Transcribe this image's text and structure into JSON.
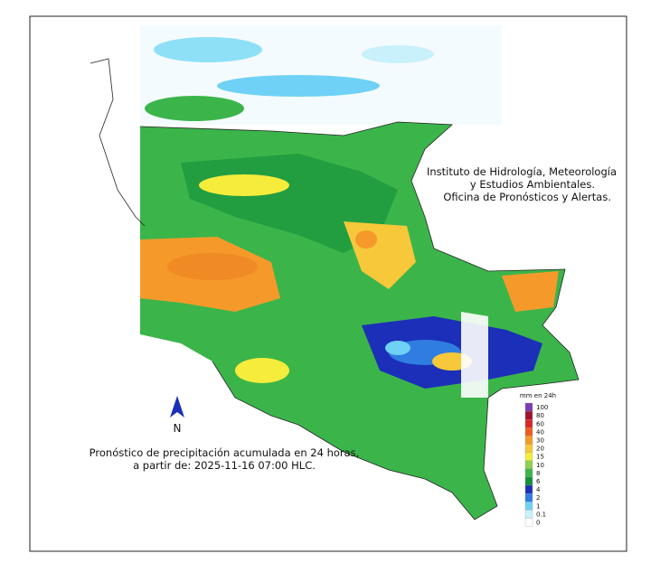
{
  "institution": {
    "lines": [
      "Instituto de Hidrología, Meteorología",
      "y Estudios Ambientales.",
      "Oficina de Pronósticos y Alertas."
    ]
  },
  "north": "N",
  "caption": {
    "lines": [
      "Pronóstico de precipitación acumulada en 24 horas,",
      "a partir de: 2025-11-16 07:00 HLC."
    ]
  },
  "legend": {
    "title": "mm en 24h",
    "items": [
      {
        "label": "100",
        "color": "#7b3fb5"
      },
      {
        "label": "80",
        "color": "#a0142b"
      },
      {
        "label": "60",
        "color": "#d9262b"
      },
      {
        "label": "40",
        "color": "#ef5a24"
      },
      {
        "label": "30",
        "color": "#f59a2a"
      },
      {
        "label": "20",
        "color": "#f7c83a"
      },
      {
        "label": "15",
        "color": "#f5ec3c"
      },
      {
        "label": "10",
        "color": "#8fd14f"
      },
      {
        "label": "8",
        "color": "#3bb54a"
      },
      {
        "label": "6",
        "color": "#138f3a"
      },
      {
        "label": "4",
        "color": "#1c2fb8"
      },
      {
        "label": "2",
        "color": "#2f7de1"
      },
      {
        "label": "1",
        "color": "#6fd1f5"
      },
      {
        "label": "0.1",
        "color": "#c9f1fb"
      },
      {
        "label": "0",
        "color": "#ffffff"
      }
    ]
  }
}
